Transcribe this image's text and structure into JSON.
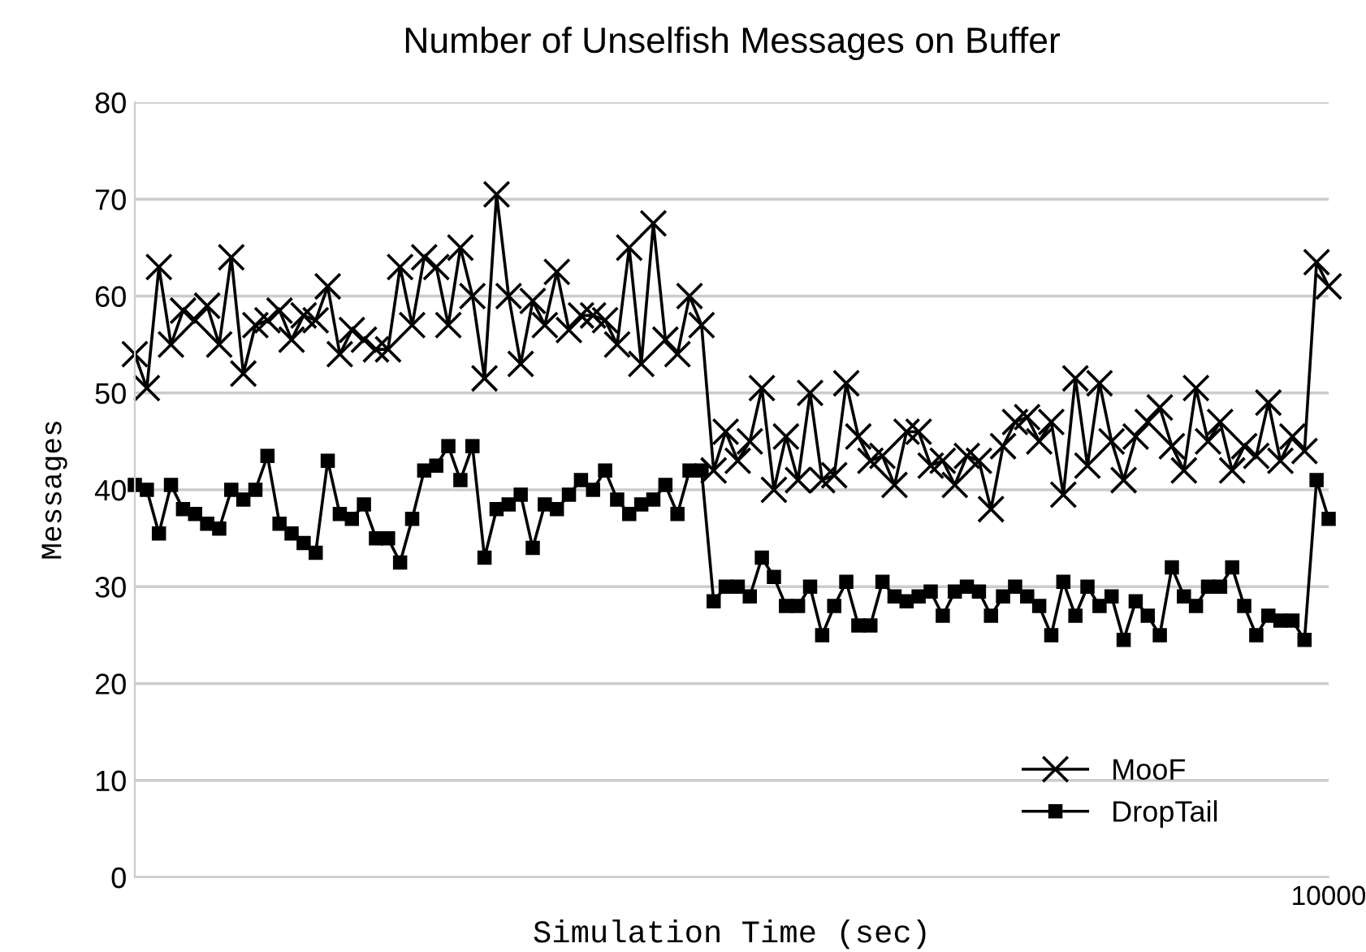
{
  "chart_data": {
    "type": "line",
    "title": "Number of Unselfish Messages on Buffer",
    "xlabel": "Simulation Time (sec)",
    "ylabel": "Messages",
    "categories": [
      null,
      null,
      null,
      null,
      null,
      null,
      null,
      null,
      null,
      null,
      null,
      null,
      null,
      null,
      null,
      null,
      null,
      null,
      null,
      null,
      null,
      null,
      null,
      null,
      null,
      null,
      null,
      null,
      null,
      null,
      null,
      null,
      null,
      null,
      null,
      null,
      null,
      null,
      null,
      null,
      null,
      null,
      null,
      null,
      null,
      null,
      null,
      null,
      null,
      null,
      null,
      null,
      null,
      null,
      null,
      null,
      null,
      null,
      null,
      null,
      null,
      null,
      null,
      null,
      null,
      null,
      null,
      null,
      null,
      null,
      null,
      null,
      null,
      null,
      null,
      null,
      null,
      null,
      null,
      null,
      null,
      null,
      null,
      null,
      null,
      null,
      null,
      null,
      null,
      null,
      null,
      null,
      null,
      null,
      null,
      null,
      null,
      null,
      null,
      "10000"
    ],
    "series": [
      {
        "name": "MooF",
        "color": "#000000",
        "marker": "cross",
        "values": [
          54,
          50.5,
          63,
          55,
          58.5,
          57.5,
          59,
          55,
          64,
          52,
          57,
          57.5,
          58.5,
          55.5,
          58,
          57.5,
          61,
          54,
          56.5,
          55.5,
          54.5,
          54.5,
          63,
          57,
          64,
          63,
          57,
          65,
          60,
          51.5,
          70.5,
          60,
          53,
          59.5,
          57,
          62.5,
          56.5,
          58,
          58,
          57.5,
          55,
          65,
          53,
          67.5,
          55.5,
          54,
          60,
          57,
          42,
          46,
          43,
          45,
          50.5,
          40,
          45.5,
          41,
          50,
          41,
          41.5,
          51,
          45.5,
          43,
          43.5,
          40.5,
          46,
          46,
          42.5,
          43,
          40.5,
          43.5,
          43,
          38,
          44.5,
          47,
          47.5,
          45,
          47,
          39.5,
          51.5,
          42.5,
          51,
          45,
          41,
          45.5,
          47,
          48.5,
          44.5,
          42,
          50.5,
          45,
          47,
          42,
          44.5,
          43.5,
          49,
          43,
          45.5,
          44,
          63.5,
          61
        ]
      },
      {
        "name": "DropTail",
        "color": "#000000",
        "marker": "square",
        "values": [
          40.5,
          40,
          35.5,
          40.5,
          38,
          37.5,
          36.5,
          36,
          40,
          39,
          40,
          43.5,
          36.5,
          35.5,
          34.5,
          33.5,
          43,
          37.5,
          37,
          38.5,
          35,
          35,
          32.5,
          37,
          42,
          42.5,
          44.5,
          41,
          44.5,
          33,
          38,
          38.5,
          39.5,
          34,
          38.5,
          38,
          39.5,
          41,
          40,
          42,
          39,
          37.5,
          38.5,
          39,
          40.5,
          37.5,
          42,
          42,
          28.5,
          30,
          30,
          29,
          33,
          31,
          28,
          28,
          30,
          25,
          28,
          30.5,
          26,
          26,
          30.5,
          29,
          28.5,
          29,
          29.5,
          27,
          29.5,
          30,
          29.5,
          27,
          29,
          30,
          29,
          28,
          25,
          30.5,
          27,
          30,
          28,
          29,
          24.5,
          28.5,
          27,
          25,
          32,
          29,
          28,
          30,
          30,
          32,
          28,
          25,
          27,
          26.5,
          26.5,
          24.5,
          41,
          37
        ]
      }
    ],
    "ylim": [
      0,
      80
    ],
    "yticks": [
      0,
      10,
      20,
      30,
      40,
      50,
      60,
      70,
      80
    ],
    "grid": "y",
    "legend": "bottom right"
  }
}
